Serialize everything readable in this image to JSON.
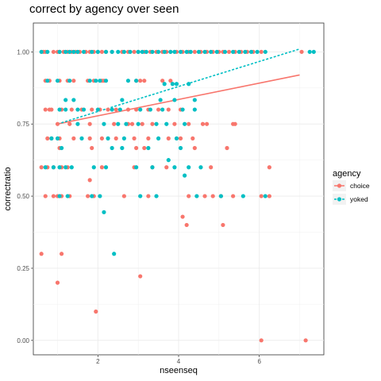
{
  "chart_data": {
    "type": "scatter",
    "title": "correct by agency over seen",
    "xlabel": "nseenseq",
    "ylabel": "correctratio",
    "xlim": [
      0.4,
      7.6
    ],
    "ylim": [
      -0.05,
      1.1
    ],
    "x_ticks": [
      2,
      4,
      6
    ],
    "y_ticks": [
      0.0,
      0.25,
      0.5,
      0.75,
      1.0
    ],
    "x_tick_labels": [
      "2",
      "4",
      "6"
    ],
    "y_tick_labels": [
      "0.00",
      "0.25",
      "0.50",
      "0.75",
      "1.00"
    ],
    "grid": true,
    "legend": {
      "title": "agency",
      "position": "right",
      "entries": [
        "choice",
        "yoked"
      ]
    },
    "series": [
      {
        "name": "choice",
        "color": "#F8766D",
        "line_style": "solid",
        "trend": [
          [
            1.0,
            0.75
          ],
          [
            7.0,
            0.92
          ]
        ],
        "points": [
          [
            0.65,
            1.0
          ],
          [
            0.7,
            1.0
          ],
          [
            0.9,
            1.0
          ],
          [
            1.0,
            1.0
          ],
          [
            1.05,
            1.0
          ],
          [
            1.15,
            1.0
          ],
          [
            1.25,
            1.0
          ],
          [
            1.35,
            1.0
          ],
          [
            1.45,
            1.0
          ],
          [
            1.55,
            1.0
          ],
          [
            1.7,
            1.0
          ],
          [
            1.8,
            1.0
          ],
          [
            1.9,
            1.0
          ],
          [
            2.0,
            1.0
          ],
          [
            2.1,
            1.0
          ],
          [
            2.2,
            1.0
          ],
          [
            2.35,
            1.0
          ],
          [
            2.6,
            1.0
          ],
          [
            2.75,
            1.0
          ],
          [
            2.9,
            1.0
          ],
          [
            3.0,
            1.0
          ],
          [
            3.15,
            1.0
          ],
          [
            3.3,
            1.0
          ],
          [
            3.45,
            1.0
          ],
          [
            3.6,
            1.0
          ],
          [
            3.7,
            1.0
          ],
          [
            3.8,
            1.0
          ],
          [
            3.95,
            1.0
          ],
          [
            4.1,
            1.0
          ],
          [
            4.25,
            1.0
          ],
          [
            4.4,
            1.0
          ],
          [
            4.55,
            1.0
          ],
          [
            4.7,
            1.0
          ],
          [
            4.85,
            1.0
          ],
          [
            5.0,
            1.0
          ],
          [
            5.1,
            1.0
          ],
          [
            5.25,
            1.0
          ],
          [
            5.4,
            1.0
          ],
          [
            5.55,
            1.0
          ],
          [
            5.7,
            1.0
          ],
          [
            5.85,
            1.0
          ],
          [
            6.05,
            1.0
          ],
          [
            7.05,
            1.0
          ],
          [
            0.7,
            0.9
          ],
          [
            0.8,
            0.9
          ],
          [
            1.05,
            0.9
          ],
          [
            1.25,
            0.9
          ],
          [
            1.4,
            0.9
          ],
          [
            1.75,
            0.9
          ],
          [
            1.9,
            0.9
          ],
          [
            2.1,
            0.9
          ],
          [
            2.15,
            0.9
          ],
          [
            2.95,
            0.9
          ],
          [
            3.05,
            0.9
          ],
          [
            3.15,
            0.9
          ],
          [
            3.6,
            0.9
          ],
          [
            3.8,
            0.9
          ],
          [
            0.7,
            0.8
          ],
          [
            0.8,
            0.8
          ],
          [
            0.85,
            0.8
          ],
          [
            1.1,
            0.8
          ],
          [
            1.35,
            0.8
          ],
          [
            1.6,
            0.8
          ],
          [
            1.85,
            0.8
          ],
          [
            2.05,
            0.8
          ],
          [
            2.25,
            0.8
          ],
          [
            2.45,
            0.8
          ],
          [
            2.75,
            0.8
          ],
          [
            2.95,
            0.8
          ],
          [
            3.25,
            0.8
          ],
          [
            3.5,
            0.8
          ],
          [
            3.75,
            0.8
          ],
          [
            4.05,
            0.8
          ],
          [
            1.0,
            0.75
          ],
          [
            1.3,
            0.75
          ],
          [
            1.8,
            0.75
          ],
          [
            2.4,
            0.75
          ],
          [
            2.75,
            0.75
          ],
          [
            2.85,
            0.75
          ],
          [
            3.1,
            0.75
          ],
          [
            3.35,
            0.75
          ],
          [
            3.9,
            0.75
          ],
          [
            4.25,
            0.75
          ],
          [
            4.6,
            0.75
          ],
          [
            4.7,
            0.75
          ],
          [
            5.35,
            0.75
          ],
          [
            5.4,
            0.75
          ],
          [
            0.75,
            0.7
          ],
          [
            0.85,
            0.7
          ],
          [
            1.05,
            0.7
          ],
          [
            1.4,
            0.7
          ],
          [
            1.8,
            0.7
          ],
          [
            2.1,
            0.7
          ],
          [
            2.45,
            0.7
          ],
          [
            2.9,
            0.7
          ],
          [
            3.25,
            0.7
          ],
          [
            3.75,
            0.7
          ],
          [
            4.05,
            0.7
          ],
          [
            4.35,
            0.7
          ],
          [
            1.05,
            0.6667
          ],
          [
            1.85,
            0.6667
          ],
          [
            2.95,
            0.6667
          ],
          [
            3.15,
            0.6667
          ],
          [
            4.4,
            0.6667
          ],
          [
            5.2,
            0.6667
          ],
          [
            0.6,
            0.6
          ],
          [
            0.75,
            0.6
          ],
          [
            0.9,
            0.6
          ],
          [
            1.1,
            0.6
          ],
          [
            1.25,
            0.6
          ],
          [
            2.1,
            0.6
          ],
          [
            2.9,
            0.6
          ],
          [
            3.35,
            0.6
          ],
          [
            3.7,
            0.6
          ],
          [
            4.8,
            0.6
          ],
          [
            6.25,
            0.6
          ],
          [
            1.8,
            0.5556
          ],
          [
            0.7,
            0.5
          ],
          [
            0.9,
            0.5
          ],
          [
            1.0,
            0.5
          ],
          [
            1.1,
            0.5
          ],
          [
            1.3,
            0.5
          ],
          [
            1.75,
            0.5
          ],
          [
            1.9,
            0.5
          ],
          [
            2.65,
            0.5
          ],
          [
            3.25,
            0.5
          ],
          [
            4.25,
            0.5
          ],
          [
            4.65,
            0.5
          ],
          [
            4.85,
            0.5
          ],
          [
            5.05,
            0.5
          ],
          [
            5.35,
            0.5
          ],
          [
            6.05,
            0.5
          ],
          [
            6.25,
            0.5
          ],
          [
            4.1,
            0.4286
          ],
          [
            4.2,
            0.4
          ],
          [
            5.1,
            0.4
          ],
          [
            0.6,
            0.3
          ],
          [
            1.1,
            0.3
          ],
          [
            3.05,
            0.2222
          ],
          [
            1.0,
            0.2
          ],
          [
            1.95,
            0.1
          ],
          [
            6.05,
            0.0
          ],
          [
            7.15,
            0.0
          ]
        ]
      },
      {
        "name": "yoked",
        "color": "#00BFC4",
        "line_style": "dashed",
        "trend": [
          [
            1.0,
            0.75
          ],
          [
            7.0,
            1.01
          ]
        ],
        "points": [
          [
            0.6,
            1.0
          ],
          [
            0.75,
            1.0
          ],
          [
            1.05,
            1.0
          ],
          [
            1.2,
            1.0
          ],
          [
            1.3,
            1.0
          ],
          [
            1.4,
            1.0
          ],
          [
            1.5,
            1.0
          ],
          [
            1.65,
            1.0
          ],
          [
            1.85,
            1.0
          ],
          [
            2.0,
            1.0
          ],
          [
            2.2,
            1.0
          ],
          [
            2.35,
            1.0
          ],
          [
            2.5,
            1.0
          ],
          [
            2.65,
            1.0
          ],
          [
            2.8,
            1.0
          ],
          [
            3.0,
            1.0
          ],
          [
            3.1,
            1.0
          ],
          [
            3.2,
            1.0
          ],
          [
            3.35,
            1.0
          ],
          [
            3.5,
            1.0
          ],
          [
            3.65,
            1.0
          ],
          [
            3.8,
            1.0
          ],
          [
            3.9,
            1.0
          ],
          [
            4.05,
            1.0
          ],
          [
            4.2,
            1.0
          ],
          [
            4.3,
            1.0
          ],
          [
            4.5,
            1.0
          ],
          [
            4.65,
            1.0
          ],
          [
            4.8,
            1.0
          ],
          [
            4.95,
            1.0
          ],
          [
            5.15,
            1.0
          ],
          [
            5.35,
            1.0
          ],
          [
            5.5,
            1.0
          ],
          [
            5.65,
            1.0
          ],
          [
            5.8,
            1.0
          ],
          [
            5.95,
            1.0
          ],
          [
            6.15,
            1.0
          ],
          [
            7.25,
            1.0
          ],
          [
            7.35,
            1.0
          ],
          [
            0.75,
            0.9
          ],
          [
            1.0,
            0.9
          ],
          [
            1.3,
            0.9
          ],
          [
            1.8,
            0.9
          ],
          [
            1.95,
            0.9
          ],
          [
            2.05,
            0.9
          ],
          [
            2.2,
            0.9
          ],
          [
            2.75,
            0.9
          ],
          [
            2.95,
            0.9
          ],
          [
            3.65,
            0.8889
          ],
          [
            3.85,
            0.8889
          ],
          [
            3.95,
            0.8889
          ],
          [
            4.25,
            0.8889
          ],
          [
            1.2,
            0.8333
          ],
          [
            1.4,
            0.8333
          ],
          [
            2.6,
            0.8333
          ],
          [
            3.55,
            0.8333
          ],
          [
            3.9,
            0.8333
          ],
          [
            4.4,
            0.8333
          ],
          [
            1.05,
            0.8
          ],
          [
            1.2,
            0.8
          ],
          [
            1.5,
            0.8
          ],
          [
            1.65,
            0.8
          ],
          [
            2.0,
            0.8
          ],
          [
            2.35,
            0.8
          ],
          [
            2.55,
            0.8
          ],
          [
            3.05,
            0.8
          ],
          [
            3.3,
            0.8
          ],
          [
            3.6,
            0.8
          ],
          [
            4.1,
            0.8
          ],
          [
            4.4,
            0.8
          ],
          [
            1.5,
            0.75
          ],
          [
            2.15,
            0.75
          ],
          [
            2.5,
            0.75
          ],
          [
            2.7,
            0.75
          ],
          [
            3.0,
            0.75
          ],
          [
            3.45,
            0.75
          ],
          [
            3.7,
            0.75
          ],
          [
            4.15,
            0.75
          ],
          [
            0.85,
            0.7
          ],
          [
            1.0,
            0.7
          ],
          [
            1.6,
            0.7
          ],
          [
            2.25,
            0.7
          ],
          [
            2.65,
            0.7
          ],
          [
            3.5,
            0.7
          ],
          [
            3.95,
            0.7
          ],
          [
            1.1,
            0.6667
          ],
          [
            2.35,
            0.6667
          ],
          [
            2.6,
            0.6667
          ],
          [
            3.25,
            0.6667
          ],
          [
            4.05,
            0.6667
          ],
          [
            3.75,
            0.625
          ],
          [
            0.7,
            0.6
          ],
          [
            0.9,
            0.6
          ],
          [
            1.05,
            0.6
          ],
          [
            1.2,
            0.6
          ],
          [
            1.35,
            0.6
          ],
          [
            1.9,
            0.6
          ],
          [
            2.2,
            0.6
          ],
          [
            2.95,
            0.6
          ],
          [
            3.35,
            0.6
          ],
          [
            3.9,
            0.6
          ],
          [
            4.25,
            0.6
          ],
          [
            4.55,
            0.6
          ],
          [
            4.15,
            0.5714
          ],
          [
            1.05,
            0.5
          ],
          [
            1.25,
            0.5
          ],
          [
            1.85,
            0.5
          ],
          [
            2.05,
            0.5
          ],
          [
            3.05,
            0.5
          ],
          [
            3.45,
            0.5
          ],
          [
            4.45,
            0.5
          ],
          [
            5.05,
            0.5
          ],
          [
            5.6,
            0.5
          ],
          [
            6.15,
            0.5
          ],
          [
            2.15,
            0.4444
          ],
          [
            2.4,
            0.3
          ]
        ]
      }
    ]
  }
}
